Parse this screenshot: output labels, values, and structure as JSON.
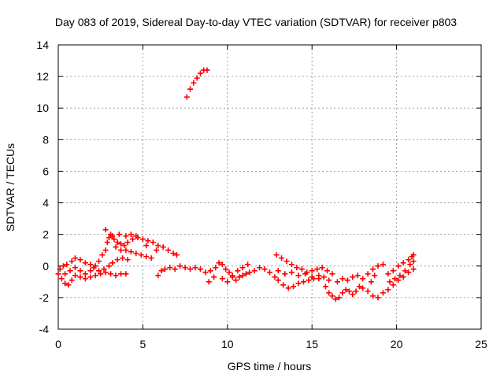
{
  "chart_data": {
    "type": "scatter",
    "title": "Day 083 of 2019, Sidereal Day-to-day VTEC variation (SDTVAR) for receiver p803",
    "xlabel": "GPS time / hours",
    "ylabel": "SDTVAR / TECUs",
    "xlim": [
      0,
      25
    ],
    "ylim": [
      -4,
      14
    ],
    "xticks": [
      0,
      5,
      10,
      15,
      20,
      25
    ],
    "yticks": [
      -4,
      -2,
      0,
      2,
      4,
      6,
      8,
      10,
      12,
      14
    ],
    "grid": true,
    "legend": "none",
    "marker": "plus",
    "color": "#ff0000",
    "series": [
      {
        "points": [
          [
            0.0,
            -0.5
          ],
          [
            0.2,
            -0.8
          ],
          [
            0.4,
            -1.1
          ],
          [
            0.6,
            -1.2
          ],
          [
            0.8,
            -0.9
          ],
          [
            1.0,
            -0.6
          ],
          [
            1.3,
            -0.7
          ],
          [
            1.6,
            -0.8
          ],
          [
            1.9,
            -0.7
          ],
          [
            2.2,
            -0.6
          ],
          [
            2.5,
            -0.5
          ],
          [
            2.8,
            -0.4
          ],
          [
            3.1,
            -0.5
          ],
          [
            3.4,
            -0.6
          ],
          [
            3.7,
            -0.5
          ],
          [
            4.0,
            -0.5
          ],
          [
            0.1,
            -0.2
          ],
          [
            0.3,
            0.0
          ],
          [
            0.5,
            0.1
          ],
          [
            0.8,
            0.3
          ],
          [
            1.0,
            0.5
          ],
          [
            1.3,
            0.4
          ],
          [
            1.6,
            0.2
          ],
          [
            1.9,
            0.1
          ],
          [
            2.1,
            -0.1
          ],
          [
            2.4,
            -0.3
          ],
          [
            2.7,
            -0.2
          ],
          [
            3.0,
            0.0
          ],
          [
            3.2,
            0.2
          ],
          [
            3.5,
            0.4
          ],
          [
            3.8,
            0.5
          ],
          [
            4.1,
            0.4
          ],
          [
            0.4,
            -0.5
          ],
          [
            0.7,
            -0.3
          ],
          [
            1.0,
            -0.1
          ],
          [
            1.3,
            -0.3
          ],
          [
            1.6,
            -0.5
          ],
          [
            1.9,
            -0.3
          ],
          [
            2.2,
            0.0
          ],
          [
            2.4,
            0.3
          ],
          [
            2.6,
            0.7
          ],
          [
            2.8,
            1.0
          ],
          [
            2.9,
            1.5
          ],
          [
            3.0,
            1.8
          ],
          [
            3.1,
            2.0
          ],
          [
            3.3,
            1.7
          ],
          [
            3.5,
            1.5
          ],
          [
            3.7,
            1.4
          ],
          [
            3.9,
            1.3
          ],
          [
            4.1,
            1.5
          ],
          [
            4.4,
            1.7
          ],
          [
            4.7,
            1.8
          ],
          [
            5.0,
            1.7
          ],
          [
            5.3,
            1.6
          ],
          [
            5.6,
            1.5
          ],
          [
            5.9,
            1.3
          ],
          [
            6.2,
            1.2
          ],
          [
            6.5,
            1.0
          ],
          [
            6.8,
            0.8
          ],
          [
            7.0,
            0.7
          ],
          [
            3.4,
            1.2
          ],
          [
            3.7,
            1.0
          ],
          [
            4.0,
            1.0
          ],
          [
            4.3,
            0.9
          ],
          [
            4.6,
            0.8
          ],
          [
            4.9,
            0.7
          ],
          [
            5.2,
            0.6
          ],
          [
            5.5,
            0.5
          ],
          [
            2.8,
            2.3
          ],
          [
            3.2,
            1.9
          ],
          [
            3.6,
            2.0
          ],
          [
            4.0,
            1.9
          ],
          [
            4.3,
            2.0
          ],
          [
            4.6,
            1.9
          ],
          [
            5.2,
            1.3
          ],
          [
            5.8,
            1.0
          ],
          [
            7.6,
            10.7
          ],
          [
            7.8,
            11.2
          ],
          [
            8.0,
            11.6
          ],
          [
            8.2,
            11.9
          ],
          [
            8.4,
            12.2
          ],
          [
            8.6,
            12.4
          ],
          [
            8.8,
            12.4
          ],
          [
            5.9,
            -0.6
          ],
          [
            6.1,
            -0.3
          ],
          [
            6.3,
            -0.2
          ],
          [
            6.6,
            -0.1
          ],
          [
            6.9,
            -0.2
          ],
          [
            7.2,
            0.0
          ],
          [
            7.5,
            -0.1
          ],
          [
            7.8,
            -0.2
          ],
          [
            8.1,
            -0.1
          ],
          [
            8.4,
            -0.2
          ],
          [
            8.7,
            -0.4
          ],
          [
            9.0,
            -0.3
          ],
          [
            9.3,
            -0.1
          ],
          [
            8.9,
            -1.0
          ],
          [
            9.2,
            -0.7
          ],
          [
            9.5,
            0.2
          ],
          [
            9.7,
            0.1
          ],
          [
            9.9,
            -0.2
          ],
          [
            10.1,
            -0.4
          ],
          [
            10.3,
            -0.7
          ],
          [
            10.5,
            -0.9
          ],
          [
            10.7,
            -0.7
          ],
          [
            10.9,
            -0.6
          ],
          [
            11.1,
            -0.5
          ],
          [
            11.3,
            -0.4
          ],
          [
            11.6,
            -0.3
          ],
          [
            11.9,
            -0.1
          ],
          [
            12.2,
            -0.2
          ],
          [
            12.5,
            -0.4
          ],
          [
            9.7,
            -0.8
          ],
          [
            10.0,
            -1.0
          ],
          [
            10.3,
            -0.6
          ],
          [
            10.6,
            -0.3
          ],
          [
            10.9,
            -0.1
          ],
          [
            11.2,
            0.1
          ],
          [
            12.8,
            -0.7
          ],
          [
            13.0,
            -0.9
          ],
          [
            13.3,
            -1.2
          ],
          [
            13.6,
            -1.4
          ],
          [
            13.9,
            -1.3
          ],
          [
            14.2,
            -1.1
          ],
          [
            14.5,
            -1.0
          ],
          [
            14.8,
            -0.9
          ],
          [
            15.1,
            -0.8
          ],
          [
            15.4,
            -0.6
          ],
          [
            15.7,
            -0.7
          ],
          [
            16.0,
            -0.9
          ],
          [
            12.9,
            0.7
          ],
          [
            13.2,
            0.5
          ],
          [
            13.5,
            0.3
          ],
          [
            13.8,
            0.1
          ],
          [
            14.1,
            -0.1
          ],
          [
            14.4,
            -0.2
          ],
          [
            14.7,
            -0.4
          ],
          [
            15.0,
            -0.3
          ],
          [
            15.3,
            -0.2
          ],
          [
            15.6,
            -0.1
          ],
          [
            15.9,
            -0.3
          ],
          [
            16.2,
            -0.5
          ],
          [
            13.0,
            -0.3
          ],
          [
            13.4,
            -0.5
          ],
          [
            13.8,
            -0.4
          ],
          [
            14.2,
            -0.6
          ],
          [
            14.6,
            -0.5
          ],
          [
            15.0,
            -0.7
          ],
          [
            15.4,
            -0.8
          ],
          [
            15.8,
            -1.3
          ],
          [
            16.0,
            -1.7
          ],
          [
            16.2,
            -1.9
          ],
          [
            16.4,
            -2.1
          ],
          [
            16.6,
            -2.0
          ],
          [
            16.8,
            -1.7
          ],
          [
            17.0,
            -1.5
          ],
          [
            17.2,
            -1.6
          ],
          [
            17.4,
            -1.8
          ],
          [
            17.6,
            -1.6
          ],
          [
            17.8,
            -1.3
          ],
          [
            16.5,
            -1.0
          ],
          [
            16.8,
            -0.8
          ],
          [
            17.1,
            -0.9
          ],
          [
            17.4,
            -0.7
          ],
          [
            17.7,
            -0.6
          ],
          [
            18.0,
            -0.8
          ],
          [
            18.3,
            -0.5
          ],
          [
            18.6,
            -0.2
          ],
          [
            18.9,
            0.0
          ],
          [
            19.2,
            0.1
          ],
          [
            18.0,
            -1.4
          ],
          [
            18.3,
            -1.6
          ],
          [
            18.6,
            -1.9
          ],
          [
            18.9,
            -2.0
          ],
          [
            19.2,
            -1.7
          ],
          [
            19.5,
            -1.5
          ],
          [
            19.8,
            -1.2
          ],
          [
            20.1,
            -0.9
          ],
          [
            20.4,
            -0.7
          ],
          [
            20.7,
            -0.4
          ],
          [
            21.0,
            -0.2
          ],
          [
            18.5,
            -1.0
          ],
          [
            18.7,
            -0.6
          ],
          [
            19.5,
            -0.5
          ],
          [
            19.8,
            -0.3
          ],
          [
            20.1,
            0.0
          ],
          [
            20.4,
            0.2
          ],
          [
            20.7,
            0.4
          ],
          [
            20.9,
            0.6
          ],
          [
            21.0,
            0.7
          ],
          [
            19.6,
            -1.0
          ],
          [
            19.9,
            -0.8
          ],
          [
            20.2,
            -0.6
          ],
          [
            20.5,
            -0.3
          ],
          [
            20.8,
            0.1
          ],
          [
            21.0,
            0.3
          ]
        ]
      }
    ]
  }
}
